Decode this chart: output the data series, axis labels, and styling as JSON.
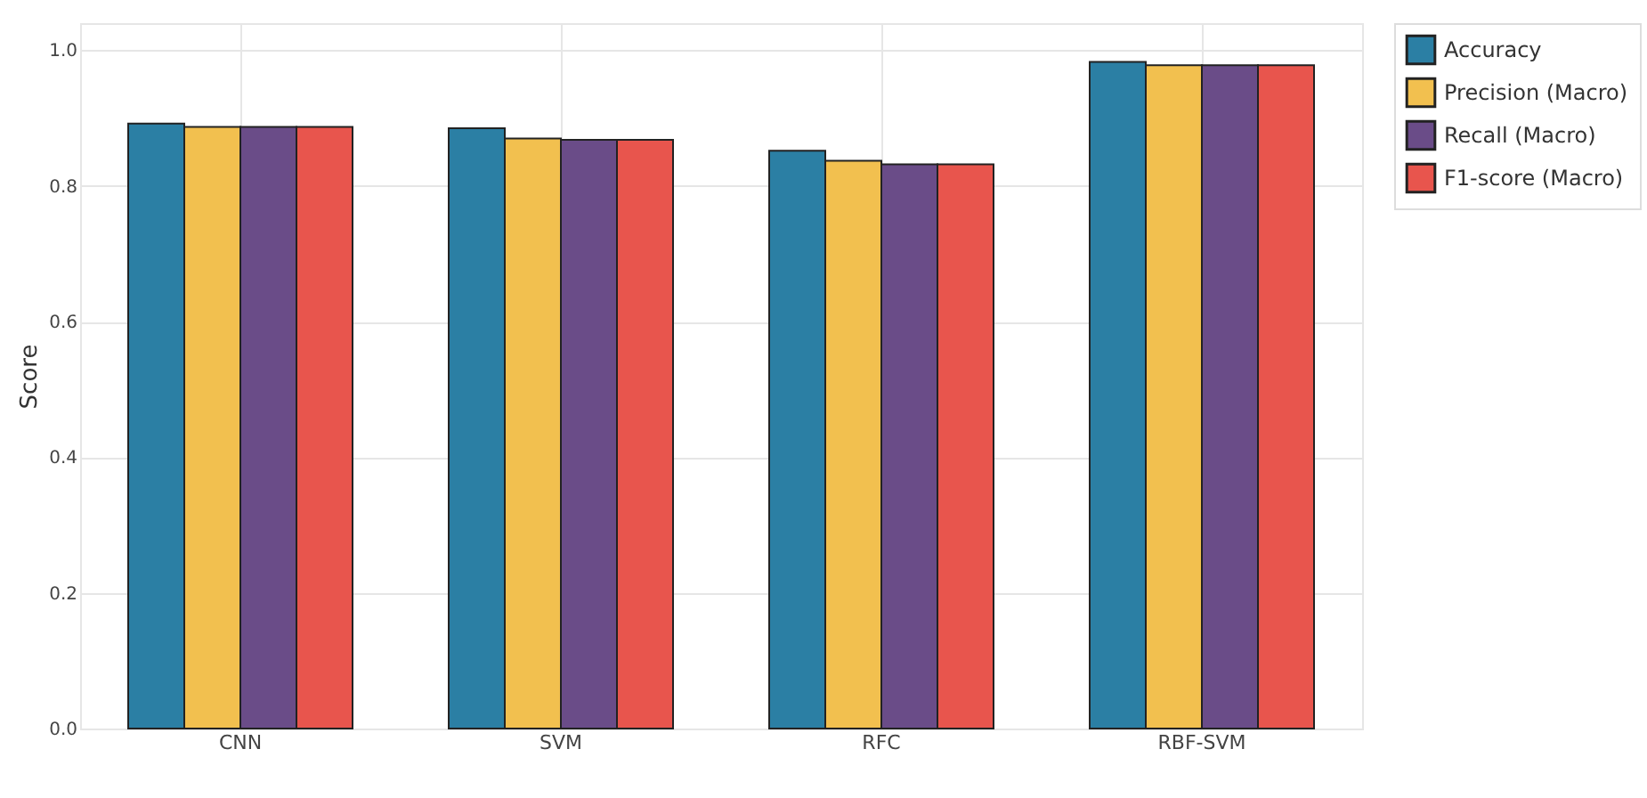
{
  "chart_data": {
    "type": "bar",
    "ylabel": "Score",
    "categories": [
      "CNN",
      "SVM",
      "RFC",
      "RBF-SVM"
    ],
    "series": [
      {
        "name": "Accuracy",
        "color": "#2b7fa4",
        "values": [
          0.892,
          0.885,
          0.852,
          0.983
        ]
      },
      {
        "name": "Precision (Macro)",
        "color": "#f2c04f",
        "values": [
          0.887,
          0.87,
          0.837,
          0.978
        ]
      },
      {
        "name": "Recall (Macro)",
        "color": "#6a4c88",
        "values": [
          0.887,
          0.868,
          0.832,
          0.978
        ]
      },
      {
        "name": "F1-score (Macro)",
        "color": "#e8554d",
        "values": [
          0.887,
          0.868,
          0.832,
          0.978
        ]
      }
    ],
    "ylim": [
      0,
      1.04
    ],
    "yticks": [
      {
        "value": 0,
        "label": "0.0"
      },
      0.2,
      0.4,
      0.6,
      0.8,
      {
        "value": 1,
        "label": "1.0"
      }
    ],
    "grid": true,
    "legend": "right"
  }
}
